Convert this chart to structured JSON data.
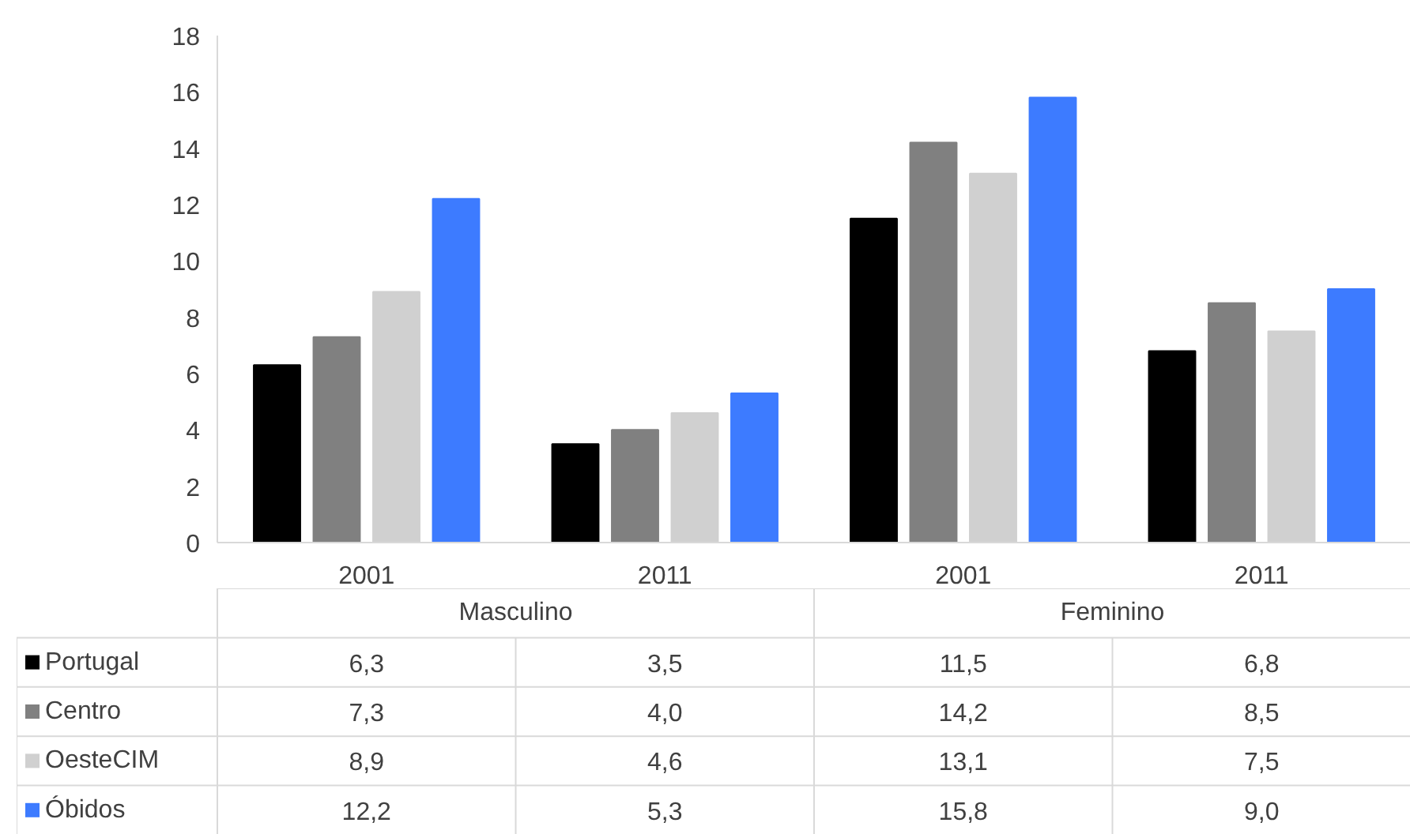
{
  "chart_data": {
    "type": "bar",
    "categories": [
      "2001",
      "2011",
      "2001",
      "2011"
    ],
    "annotations": [
      "Masculino",
      "Feminino"
    ],
    "ylim": [
      0,
      18
    ],
    "yticks": [
      0,
      2,
      4,
      6,
      8,
      10,
      12,
      14,
      16,
      18
    ],
    "grid": false,
    "legend": "bottom",
    "series": [
      {
        "name": "Portugal",
        "color": "#000000",
        "values": [
          6.3,
          3.5,
          11.5,
          6.8
        ],
        "value_labels": [
          "6,3",
          "3,5",
          "11,5",
          "6,8"
        ]
      },
      {
        "name": "Centro",
        "color": "#808080",
        "values": [
          7.3,
          4.0,
          14.2,
          8.5
        ],
        "value_labels": [
          "7,3",
          "4,0",
          "14,2",
          "8,5"
        ]
      },
      {
        "name": "OesteCIM",
        "color": "#d0d0d0",
        "values": [
          8.9,
          4.6,
          13.1,
          7.5
        ],
        "value_labels": [
          "8,9",
          "4,6",
          "13,1",
          "7,5"
        ]
      },
      {
        "name": "Óbidos",
        "color": "#3d7bff",
        "values": [
          12.2,
          5.3,
          15.8,
          9.0
        ],
        "value_labels": [
          "12,2",
          "5,3",
          "15,8",
          "9,0"
        ]
      }
    ]
  }
}
